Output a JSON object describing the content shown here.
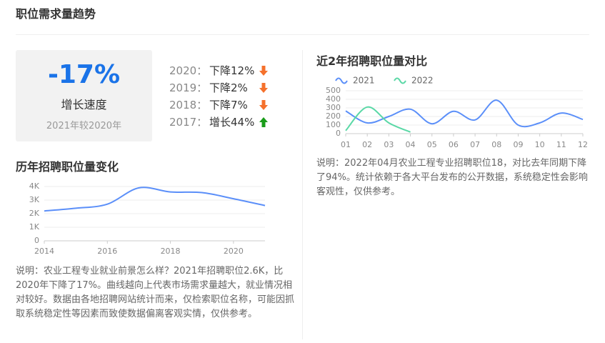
{
  "header": {
    "title": "职位需求量趋势"
  },
  "summary": {
    "value": "-17%",
    "label": "增长速度",
    "note": "2021年较2020年"
  },
  "yearly": [
    {
      "year": "2020：",
      "change": "下降12%",
      "direction": "down"
    },
    {
      "year": "2019：",
      "change": "下降2%",
      "direction": "down"
    },
    {
      "year": "2018：",
      "change": "下降7%",
      "direction": "down"
    },
    {
      "year": "2017：",
      "change": "增长44%",
      "direction": "up"
    }
  ],
  "chart_data": [
    {
      "type": "line",
      "title": "历年招聘职位量变化",
      "x": [
        2014,
        2015,
        2016,
        2017,
        2018,
        2019,
        2020,
        2021
      ],
      "xlim": [
        2014,
        2021
      ],
      "xticks": [
        2014,
        2016,
        2018,
        2020
      ],
      "ylim": [
        0,
        4000
      ],
      "yticks": [
        0,
        {
          "value": 1000,
          "label": "1K"
        },
        {
          "value": 2000,
          "label": "2K"
        },
        {
          "value": 3000,
          "label": "3K"
        },
        {
          "value": 4000,
          "label": "4K"
        }
      ],
      "grid": true,
      "series": [
        {
          "name": null,
          "color": "#5b8ff9",
          "values": [
            2200,
            2400,
            2700,
            3900,
            3600,
            3550,
            3100,
            2600
          ]
        }
      ],
      "note": "说明：农业工程专业就业前景怎么样？2021年招聘职位2.6K，比2020年下降了17%。曲线越向上代表市场需求量越大，就业情况相对较好。数据由各地招聘网站统计而来，仅检索职位名称，可能因抓取系统稳定性等因素而致使数据偏离客观实情，仅供参考。"
    },
    {
      "type": "line",
      "title": "近2年招聘职位量对比",
      "categories": [
        "01",
        "02",
        "03",
        "04",
        "05",
        "06",
        "07",
        "08",
        "09",
        "10",
        "11",
        "12"
      ],
      "ylim": [
        0,
        500
      ],
      "yticks": [
        0,
        100,
        200,
        300,
        400,
        500
      ],
      "grid": true,
      "series": [
        {
          "name": "2021",
          "color": "#5b8ff9",
          "values": [
            265,
            125,
            200,
            285,
            115,
            260,
            160,
            390,
            100,
            125,
            240,
            165
          ]
        },
        {
          "name": "2022",
          "color": "#5ad8a6",
          "values": [
            35,
            310,
            125,
            18,
            null,
            null,
            null,
            null,
            null,
            null,
            null,
            null
          ]
        }
      ],
      "note": "说明：2022年04月农业工程专业招聘职位18，对比去年同期下降了94%。统计依赖于各大平台发布的公开数据，系统稳定性会影响客观性，仅供参考。"
    }
  ]
}
